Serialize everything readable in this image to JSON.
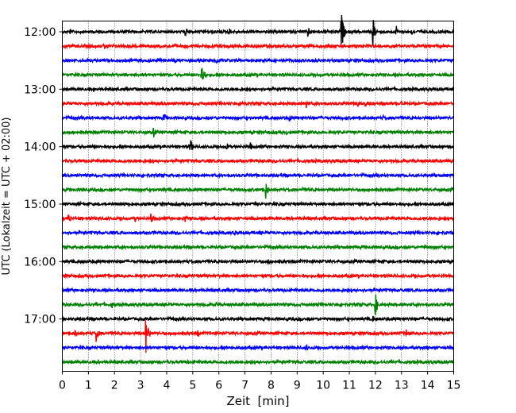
{
  "chart_data": {
    "type": "line",
    "xlabel": "Zeit  [min]",
    "ylabel": "UTC (Lokalzeit = UTC + 02:00)",
    "xlim": [
      0,
      15
    ],
    "x_ticks": [
      0,
      1,
      2,
      3,
      4,
      5,
      6,
      7,
      8,
      9,
      10,
      11,
      12,
      13,
      14,
      15
    ],
    "y_ticks": [
      "12:00",
      "13:00",
      "14:00",
      "15:00",
      "16:00",
      "17:00"
    ],
    "row_interval_minutes": 15,
    "rows_start": "12:00",
    "vertical_grid": true,
    "grid_style": "dotted",
    "color_cycle": [
      "#000000",
      "#ff0000",
      "#0000ff",
      "#008000"
    ],
    "traces": [
      {
        "start": "12:00",
        "events": [
          [
            0.3,
            0.25
          ],
          [
            1.4,
            0.2
          ],
          [
            4.7,
            0.45
          ],
          [
            6.4,
            0.35
          ],
          [
            9.4,
            0.55
          ],
          [
            10.7,
            1.6
          ],
          [
            11.9,
            1.2
          ],
          [
            12.8,
            0.5
          ],
          [
            13.4,
            0.3
          ]
        ]
      },
      {
        "start": "12:15",
        "events": [
          [
            1.6,
            0.35
          ],
          [
            4.3,
            0.15
          ],
          [
            9.0,
            0.15
          ]
        ]
      },
      {
        "start": "12:30",
        "events": [
          [
            5.9,
            0.35
          ],
          [
            9.6,
            0.2
          ],
          [
            10.3,
            0.15
          ]
        ]
      },
      {
        "start": "12:45",
        "events": [
          [
            5.35,
            1.0
          ],
          [
            3.8,
            0.15
          ],
          [
            9.9,
            0.15
          ]
        ]
      },
      {
        "start": "13:00",
        "events": [
          [
            1.2,
            0.25
          ],
          [
            4.0,
            0.15
          ]
        ]
      },
      {
        "start": "13:15",
        "events": [
          [
            0.5,
            0.15
          ],
          [
            6.9,
            0.35
          ],
          [
            9.35,
            0.5
          ],
          [
            11.3,
            0.55
          ],
          [
            11.6,
            0.4
          ],
          [
            13.0,
            0.35
          ]
        ]
      },
      {
        "start": "13:30",
        "events": [
          [
            3.9,
            0.45
          ],
          [
            8.7,
            0.3
          ],
          [
            12.3,
            0.2
          ]
        ]
      },
      {
        "start": "13:45",
        "events": [
          [
            0.4,
            0.15
          ],
          [
            3.5,
            0.45
          ],
          [
            8.6,
            0.2
          ]
        ]
      },
      {
        "start": "14:00",
        "events": [
          [
            1.2,
            0.25
          ],
          [
            4.9,
            0.75
          ],
          [
            6.3,
            0.35
          ],
          [
            7.2,
            0.4
          ]
        ]
      },
      {
        "start": "14:15",
        "events": [
          [
            6.1,
            0.15
          ],
          [
            11.0,
            0.15
          ]
        ]
      },
      {
        "start": "14:30",
        "events": [
          [
            3.3,
            0.15
          ],
          [
            12.1,
            0.15
          ]
        ]
      },
      {
        "start": "14:45",
        "events": [
          [
            0.8,
            0.2
          ],
          [
            3.9,
            0.2
          ],
          [
            7.8,
            0.75
          ],
          [
            9.2,
            0.2
          ]
        ]
      },
      {
        "start": "15:00",
        "events": [
          [
            1.5,
            0.15
          ],
          [
            7.4,
            0.2
          ],
          [
            8.3,
            0.15
          ]
        ]
      },
      {
        "start": "15:15",
        "events": [
          [
            0.25,
            0.45
          ],
          [
            1.4,
            0.2
          ],
          [
            2.8,
            0.3
          ],
          [
            3.4,
            0.55
          ],
          [
            4.7,
            0.4
          ]
        ]
      },
      {
        "start": "15:30",
        "events": [
          [
            6.6,
            0.25
          ],
          [
            10.3,
            0.15
          ]
        ]
      },
      {
        "start": "15:45",
        "events": [
          [
            0.8,
            0.15
          ],
          [
            6.6,
            0.15
          ],
          [
            13.9,
            0.25
          ]
        ]
      },
      {
        "start": "16:00",
        "events": [
          [
            1.3,
            0.15
          ],
          [
            7.9,
            0.3
          ]
        ]
      },
      {
        "start": "16:15",
        "events": []
      },
      {
        "start": "16:30",
        "events": [
          [
            5.3,
            0.15
          ]
        ]
      },
      {
        "start": "16:45",
        "events": [
          [
            1.3,
            0.25
          ],
          [
            1.9,
            0.35
          ],
          [
            5.9,
            0.25
          ],
          [
            12.0,
            0.95
          ]
        ]
      },
      {
        "start": "17:00",
        "events": [
          [
            1.3,
            0.15
          ],
          [
            5.5,
            0.15
          ],
          [
            11.9,
            0.25
          ]
        ]
      },
      {
        "start": "17:15",
        "events": [
          [
            0.5,
            0.35
          ],
          [
            1.3,
            0.75
          ],
          [
            3.2,
            1.6
          ],
          [
            5.2,
            0.35
          ],
          [
            13.2,
            0.5
          ]
        ]
      },
      {
        "start": "17:30",
        "events": [
          [
            9.35,
            0.35
          ],
          [
            4.8,
            0.15
          ]
        ]
      },
      {
        "start": "17:45",
        "events": [
          [
            1.3,
            0.25
          ],
          [
            4.8,
            0.2
          ],
          [
            8.7,
            0.15
          ]
        ]
      }
    ]
  }
}
